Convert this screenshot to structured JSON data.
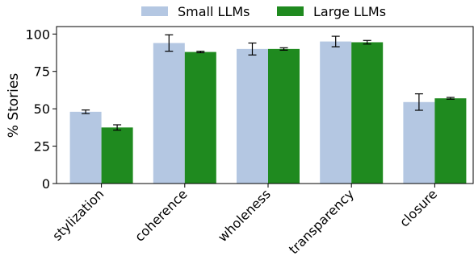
{
  "chart_data": {
    "type": "bar",
    "categories": [
      "stylization",
      "coherence",
      "wholeness",
      "transparency",
      "closure"
    ],
    "series": [
      {
        "name": "Small LLMs",
        "color": "#b4c7e2",
        "values": [
          48,
          94,
          90,
          95,
          54.5
        ],
        "error": [
          1.2,
          5.5,
          4,
          3.5,
          5.5
        ]
      },
      {
        "name": "Large LLMs",
        "color": "#1f8a1f",
        "values": [
          37.5,
          88,
          90,
          94.5,
          57
        ],
        "error": [
          1.8,
          0.5,
          0.8,
          1.2,
          0.6
        ]
      }
    ],
    "xlabel": "",
    "ylabel": "% Stories",
    "ylim": [
      0,
      105
    ],
    "yticks": [
      0,
      25,
      50,
      75,
      100
    ],
    "legend_position": "top-center",
    "grid": false
  }
}
